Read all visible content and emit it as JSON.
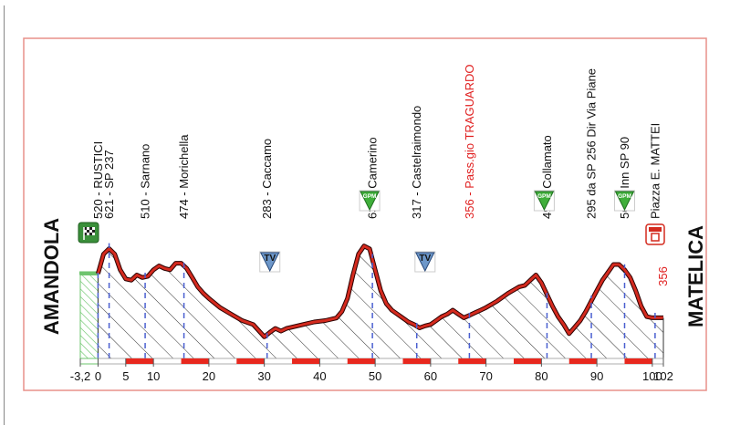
{
  "chart_data": {
    "type": "area",
    "title": "",
    "xlabel": "",
    "ylabel": "",
    "start_town": "AMANDOLA",
    "finish_town": "MATELICA",
    "x_ticks": [
      "-3,2",
      "0",
      "5",
      "10",
      "20",
      "30",
      "40",
      "50",
      "60",
      "70",
      "80",
      "90",
      "100",
      "102"
    ],
    "x_tick_values": [
      -3.2,
      0,
      5,
      10,
      20,
      30,
      40,
      50,
      60,
      70,
      80,
      90,
      100,
      102
    ],
    "xlim": [
      -3.2,
      102
    ],
    "ylim": [
      200,
      700
    ],
    "profile": {
      "x": [
        -3.2,
        0,
        1,
        2,
        3,
        4,
        5,
        6,
        7,
        8,
        9,
        10,
        11,
        12,
        13,
        14,
        15,
        16,
        17,
        18,
        19,
        20,
        22,
        24,
        26,
        28,
        30,
        31,
        32,
        33,
        34,
        35,
        37,
        39,
        41,
        43,
        44,
        45,
        46,
        47,
        48,
        49,
        50,
        51,
        52,
        53,
        54,
        55,
        56,
        57,
        58,
        59,
        60,
        61,
        62,
        63,
        64,
        65,
        66,
        67,
        68,
        69,
        70,
        72,
        74,
        76,
        77,
        78,
        79,
        80,
        81,
        82,
        83,
        84,
        85,
        86,
        87,
        88,
        89,
        90,
        91,
        92,
        93,
        94,
        95,
        96,
        97,
        98,
        99,
        100,
        102
      ],
      "y": [
        520,
        525,
        600,
        621,
        600,
        540,
        505,
        500,
        520,
        510,
        515,
        540,
        555,
        545,
        540,
        565,
        565,
        545,
        510,
        474,
        450,
        430,
        395,
        370,
        345,
        330,
        283,
        300,
        315,
        305,
        315,
        320,
        330,
        340,
        345,
        355,
        380,
        430,
        520,
        600,
        631,
        620,
        540,
        460,
        410,
        385,
        370,
        355,
        340,
        330,
        317,
        325,
        330,
        345,
        360,
        370,
        385,
        370,
        356,
        365,
        375,
        385,
        395,
        420,
        450,
        475,
        480,
        500,
        520,
        490,
        445,
        400,
        360,
        330,
        295,
        320,
        345,
        380,
        420,
        460,
        500,
        530,
        560,
        560,
        540,
        510,
        460,
        400,
        360,
        356,
        356
      ]
    },
    "markers": [
      {
        "x": 0,
        "label": "520 - RUSTICI"
      },
      {
        "x": 2,
        "label": "621 - SP 237"
      },
      {
        "x": 8.5,
        "label": "510 - Sarnano"
      },
      {
        "x": 15.5,
        "label": "474 - Morichella"
      },
      {
        "x": 30.5,
        "label": "283 - Caccamo"
      },
      {
        "x": 49.5,
        "label": "631 - Camerino"
      },
      {
        "x": 57.5,
        "label": "317 - Castelraimondo"
      },
      {
        "x": 67,
        "label": "356 - Pass.gio TRAGUARDO"
      },
      {
        "x": 81,
        "label": "490 - Collamato"
      },
      {
        "x": 89,
        "label": "295 da SP 256 Dir Via Piane"
      },
      {
        "x": 95,
        "label": "560 - Inn SP 90"
      },
      {
        "x": 100.5,
        "label": "Piazza E. MATTEI"
      }
    ],
    "finish_elevation_label": "356",
    "tv_points": [
      {
        "x": 31,
        "label": "TV"
      },
      {
        "x": 59,
        "label": "TV"
      }
    ],
    "gpm_points": [
      {
        "x": 49,
        "label": "GPM"
      },
      {
        "x": 80.5,
        "label": "GPM"
      },
      {
        "x": 95,
        "label": "GPM"
      }
    ],
    "colors": {
      "frame": "#e8908a",
      "profile_line": "#d42a1e",
      "hatch": "#333333",
      "marker_dash": "#4a5fd0",
      "tv_badge": "#6d97c9",
      "gpm_badge": "#3fae3a",
      "start_icon": "#3a8f3a",
      "finish_icon": "#d42a1e",
      "highlight_text": "#e02020",
      "km_bar_red": "#e8281e",
      "neutral_zone": "#6ec46e"
    },
    "icons": {
      "start": "start-flag-icon",
      "finish": "finish-icon",
      "tv": "tv-triangle-icon",
      "gpm": "gpm-triangle-icon"
    }
  }
}
